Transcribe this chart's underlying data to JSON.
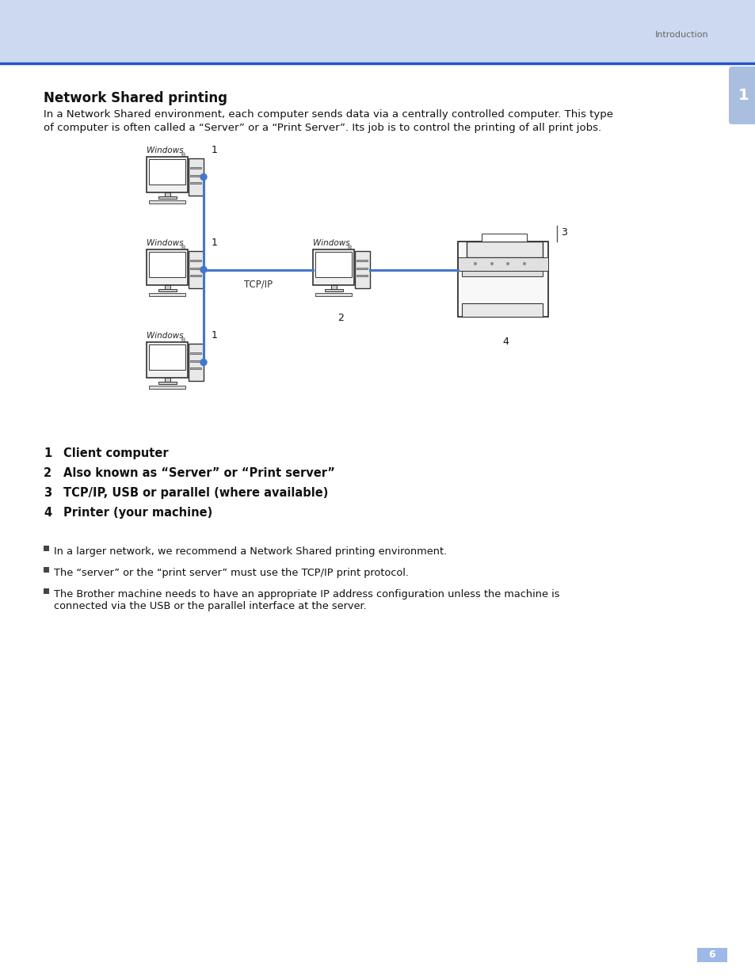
{
  "page_bg": "#ffffff",
  "header_bg": "#ccd9f0",
  "blue_line_color": "#2255cc",
  "header_text": "Introduction",
  "header_text_color": "#666666",
  "tab_bg": "#aabfe0",
  "tab_text": "1",
  "tab_text_color": "#ffffff",
  "title": "Network Shared printing",
  "intro_line1": "In a Network Shared environment, each computer sends data via a centrally controlled computer. This type",
  "intro_line2": "of computer is often called a “Server” or a “Print Server”. Its job is to control the printing of all print jobs.",
  "numbered_items": [
    {
      "num": "1",
      "text": "Client computer"
    },
    {
      "num": "2",
      "text": "Also known as “Server” or “Print server”"
    },
    {
      "num": "3",
      "text": "TCP/IP, USB or parallel (where available)"
    },
    {
      "num": "4",
      "text": "Printer (your machine)"
    }
  ],
  "bullets": [
    "In a larger network, we recommend a Network Shared printing environment.",
    "The “server” or the “print server” must use the TCP/IP print protocol.",
    "The Brother machine needs to have an appropriate IP address configuration unless the machine is\nconnected via the USB or the parallel interface at the server."
  ],
  "page_number": "6",
  "connector_color": "#4477cc",
  "windows_label": "Windows"
}
